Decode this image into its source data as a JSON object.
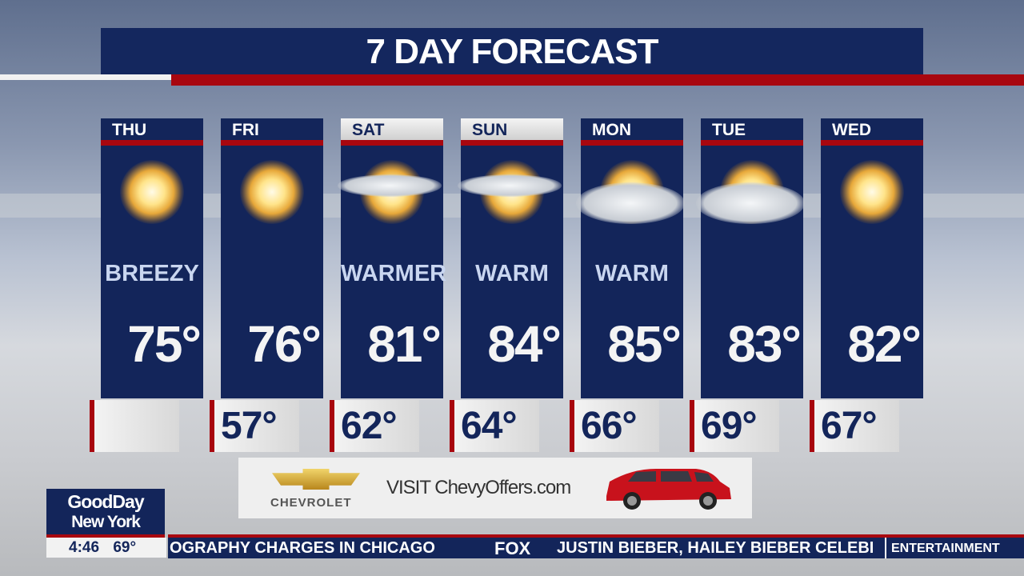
{
  "title": "7 DAY FORECAST",
  "days": [
    {
      "day": "THU",
      "icon": "sun-icon",
      "desc": "BREEZY",
      "high": "75°",
      "low": ""
    },
    {
      "day": "FRI",
      "icon": "sun-icon",
      "desc": "",
      "high": "76°",
      "low": "57°"
    },
    {
      "day": "SAT",
      "icon": "mostly-sunny-icon",
      "desc": "WARMER",
      "high": "81°",
      "low": "62°"
    },
    {
      "day": "SUN",
      "icon": "mostly-sunny-icon",
      "desc": "WARM",
      "high": "84°",
      "low": "64°"
    },
    {
      "day": "MON",
      "icon": "partly-cloudy-icon",
      "desc": "WARM",
      "high": "85°",
      "low": "66°"
    },
    {
      "day": "TUE",
      "icon": "partly-cloudy-icon",
      "desc": "",
      "high": "83°",
      "low": "69°"
    },
    {
      "day": "WED",
      "icon": "sun-icon",
      "desc": "",
      "high": "82°",
      "low": "67°"
    }
  ],
  "ad": {
    "brand": "CHEVROLET",
    "text": "VISIT ChevyOffers.com"
  },
  "show": {
    "line1": "GoodDay",
    "line2": "New York",
    "time": "4:46",
    "temp": "69°"
  },
  "ticker": {
    "left": "OGRAPHY  CHARGES  IN  CHICAGO",
    "network": "FOX",
    "right": "JUSTIN  BIEBER,  HAILEY  BIEBER  CELEBI",
    "category": "ENTERTAINMENT"
  },
  "colors": {
    "navy": "#13255a",
    "red": "#a8070f"
  }
}
